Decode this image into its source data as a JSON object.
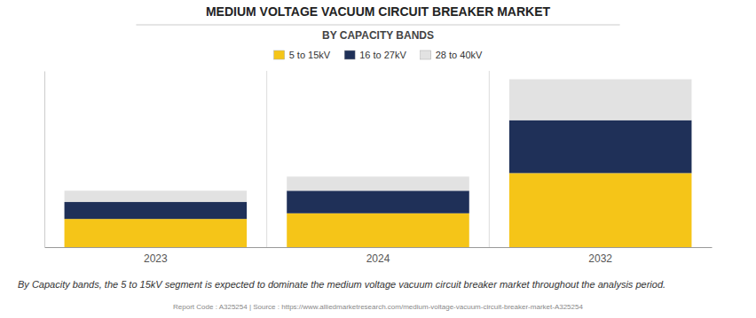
{
  "chart_data": {
    "type": "bar",
    "stacked": true,
    "title": "MEDIUM VOLTAGE VACUUM CIRCUIT BREAKER MARKET",
    "subtitle": "BY CAPACITY BANDS",
    "categories": [
      "2023",
      "2024",
      "2032"
    ],
    "series": [
      {
        "name": "5 to 15kV",
        "color": "#F5C518",
        "values": [
          4.0,
          4.8,
          10.5
        ]
      },
      {
        "name": "16 to 27kV",
        "color": "#1F3058",
        "values": [
          2.4,
          3.2,
          7.5
        ]
      },
      {
        "name": "28 to 40kV",
        "color": "#E2E2E2",
        "values": [
          1.6,
          2.0,
          5.8
        ]
      }
    ],
    "ylim": [
      0,
      24.99
    ],
    "tick_labels": "x",
    "grid": false,
    "legend": "top",
    "annotations": [
      "By Capacity bands, the 5 to 15kV segment is expected to dominate the medium voltage vacuum circuit breaker market throughout the analysis period.",
      "Report Code : A325254  |  Source : https://www.alliedmarketresearch.com/medium-voltage-vacuum-circuit-breaker-market-A325254"
    ]
  }
}
